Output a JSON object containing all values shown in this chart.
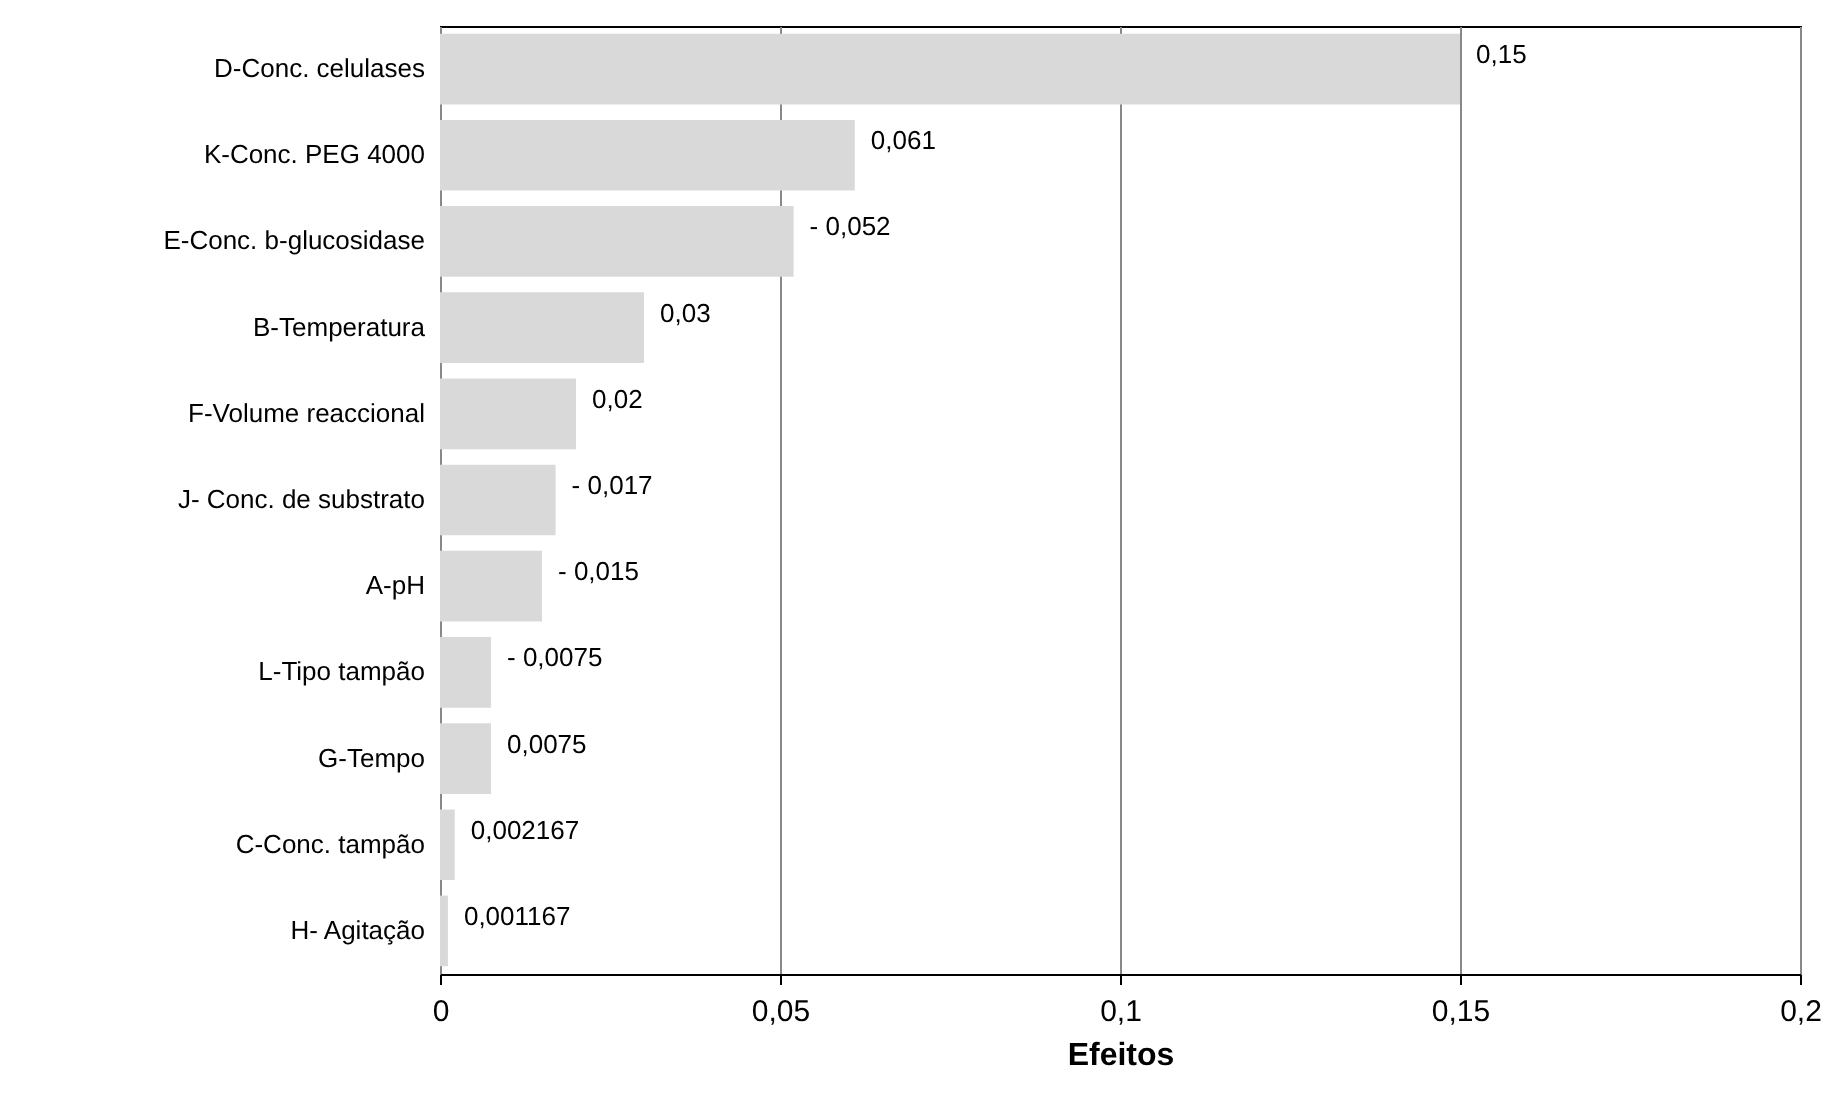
{
  "chart_data": {
    "type": "bar",
    "orientation": "horizontal",
    "xlabel": "Efeitos",
    "categories": [
      "D-Conc. celulases",
      "K-Conc. PEG 4000",
      "E-Conc. b-glucosidase",
      "B-Temperatura",
      "F-Volume reaccional",
      "J- Conc. de substrato",
      "A-pH",
      "L-Tipo tampão",
      "G-Tempo",
      "C-Conc. tampão",
      "H- Agitação"
    ],
    "values": [
      0.15,
      0.061,
      -0.052,
      0.03,
      0.02,
      -0.017,
      -0.015,
      -0.0075,
      0.0075,
      0.002167,
      0.001167
    ],
    "base": [
      0,
      0,
      0.052,
      0,
      0,
      0.017,
      0.015,
      0.0075,
      0,
      0,
      0
    ],
    "value_labels": [
      "0,15",
      "0,061",
      "- 0,052",
      "0,03",
      "0,02",
      "- 0,017",
      "- 0,015",
      "- 0,0075",
      "0,0075",
      "0,002167",
      "0,001167"
    ],
    "color": "#d9d9d9",
    "xlim": [
      0,
      0.2
    ],
    "xticks": [
      {
        "value": 0,
        "label": "0"
      },
      {
        "value": 0.05,
        "label": "0,05"
      },
      {
        "value": 0.1,
        "label": "0,1"
      },
      {
        "value": 0.15,
        "label": "0,15"
      },
      {
        "value": 0.2,
        "label": "0,2"
      }
    ],
    "grid": "x"
  }
}
